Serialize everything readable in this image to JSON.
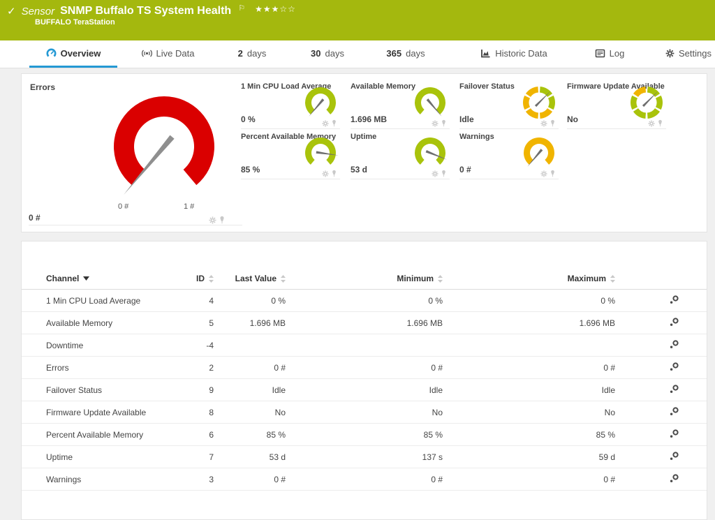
{
  "colors": {
    "header_green": "#a4b80e",
    "gauge_green": "#a9c30b",
    "gauge_amber": "#f0b400",
    "gauge_red": "#da0000",
    "accent_blue": "#2499d4"
  },
  "header": {
    "kind": "Sensor",
    "title": "SNMP Buffalo TS System Health",
    "priority_stars": "★★★☆☆",
    "device": "BUFFALO TeraStation"
  },
  "tabs": [
    {
      "label": "Overview",
      "icon": "gauge-icon",
      "active": true
    },
    {
      "label": "Live Data",
      "icon": "live-data-icon"
    },
    {
      "number": "2",
      "label": "days"
    },
    {
      "number": "30",
      "label": "days"
    },
    {
      "number": "365",
      "label": "days"
    },
    {
      "label": "Historic Data",
      "icon": "historic-data-icon"
    },
    {
      "label": "Log",
      "icon": "log-icon"
    },
    {
      "label": "Settings",
      "icon": "gear-icon"
    }
  ],
  "gauges": {
    "errors": {
      "title": "Errors",
      "value": "0 #",
      "min_label": "0 #",
      "max_label": "1 #",
      "gauge": {
        "kind": "arc",
        "color": "#da0000",
        "fraction": 0
      }
    },
    "tiles": [
      {
        "title": "1 Min CPU Load Average",
        "value": "0 %",
        "gauge": {
          "kind": "arc",
          "color": "#a9c30b",
          "fraction": 0
        }
      },
      {
        "title": "Available Memory",
        "value": "1.696 MB",
        "gauge": {
          "kind": "arc",
          "color": "#a9c30b",
          "fraction": 1
        }
      },
      {
        "title": "Failover Status",
        "value": "Idle",
        "gauge": {
          "kind": "segments",
          "colors": [
            "#a9c30b",
            "#a9c30b",
            "#f0b400",
            "#f0b400",
            "#f0b400",
            "#f0b400"
          ],
          "needle_deg": 315
        }
      },
      {
        "title": "Firmware Update Available",
        "value": "No",
        "gauge": {
          "kind": "segments",
          "colors": [
            "#a9c30b",
            "#a9c30b",
            "#a9c30b",
            "#a9c30b",
            "#a9c30b",
            "#f0b400"
          ],
          "needle_deg": 315
        }
      },
      {
        "title": "Percent Available Memory",
        "value": "85 %",
        "gauge": {
          "kind": "arc",
          "color": "#a9c30b",
          "fraction": 0.85
        }
      },
      {
        "title": "Uptime",
        "value": "53 d",
        "gauge": {
          "kind": "arc",
          "color": "#a9c30b",
          "fraction": 0.9
        }
      },
      {
        "title": "Warnings",
        "value": "0 #",
        "gauge": {
          "kind": "arc",
          "color": "#f0b400",
          "fraction": 0
        }
      }
    ]
  },
  "table": {
    "columns": {
      "channel": "Channel",
      "id": "ID",
      "last": "Last Value",
      "min": "Minimum",
      "max": "Maximum"
    },
    "rows": [
      {
        "channel": "1 Min CPU Load Average",
        "id": "4",
        "last": "0 %",
        "min": "0 %",
        "max": "0 %"
      },
      {
        "channel": "Available Memory",
        "id": "5",
        "last": "1.696 MB",
        "min": "1.696 MB",
        "max": "1.696 MB"
      },
      {
        "channel": "Downtime",
        "id": "-4",
        "last": "",
        "min": "",
        "max": ""
      },
      {
        "channel": "Errors",
        "id": "2",
        "last": "0 #",
        "min": "0 #",
        "max": "0 #"
      },
      {
        "channel": "Failover Status",
        "id": "9",
        "last": "Idle",
        "min": "Idle",
        "max": "Idle"
      },
      {
        "channel": "Firmware Update Available",
        "id": "8",
        "last": "No",
        "min": "No",
        "max": "No"
      },
      {
        "channel": "Percent Available Memory",
        "id": "6",
        "last": "85 %",
        "min": "85 %",
        "max": "85 %"
      },
      {
        "channel": "Uptime",
        "id": "7",
        "last": "53 d",
        "min": "137 s",
        "max": "59 d"
      },
      {
        "channel": "Warnings",
        "id": "3",
        "last": "0 #",
        "min": "0 #",
        "max": "0 #"
      }
    ]
  }
}
